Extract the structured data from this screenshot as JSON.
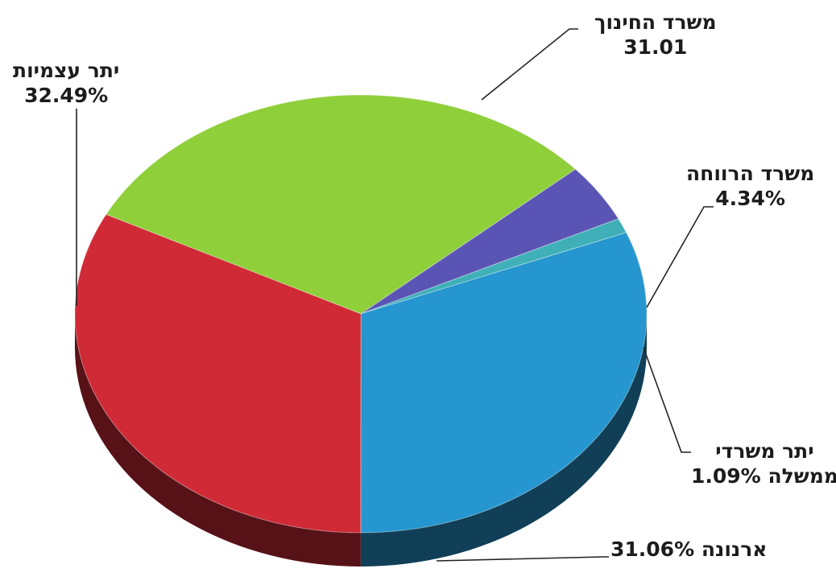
{
  "chart_data": {
    "type": "pie",
    "title": "",
    "slices": [
      {
        "label": "משרד החינוך",
        "value_text": "31.01",
        "value": 31.01,
        "color": "#8fcf3a"
      },
      {
        "label": "משרד הרווחה",
        "value_text": "4.34%",
        "value": 4.34,
        "color": "#5a55b4"
      },
      {
        "label": "יתר משרדי ממשלה",
        "value_text": "1.09%",
        "value": 1.09,
        "color": "#3fb0b8"
      },
      {
        "label": "ארנונה",
        "value_text": "31.06%",
        "value": 31.06,
        "color": "#2596cf"
      },
      {
        "label": "יתר עצמיות",
        "value_text": "32.49%",
        "value": 32.49,
        "color": "#cf2a36"
      }
    ],
    "labels": {
      "education": {
        "line1": "משרד החינוך",
        "line2": "31.01"
      },
      "welfare": {
        "line1": "משרד הרווחה",
        "line2": "4.34%"
      },
      "other_gov": {
        "line1": "יתר משרדי",
        "line2": "ממשלה 1.09%"
      },
      "arnona": {
        "line1": "ארנונה 31.06%"
      },
      "self": {
        "line1": "יתר עצמיות",
        "line2": "32.49%"
      }
    }
  }
}
